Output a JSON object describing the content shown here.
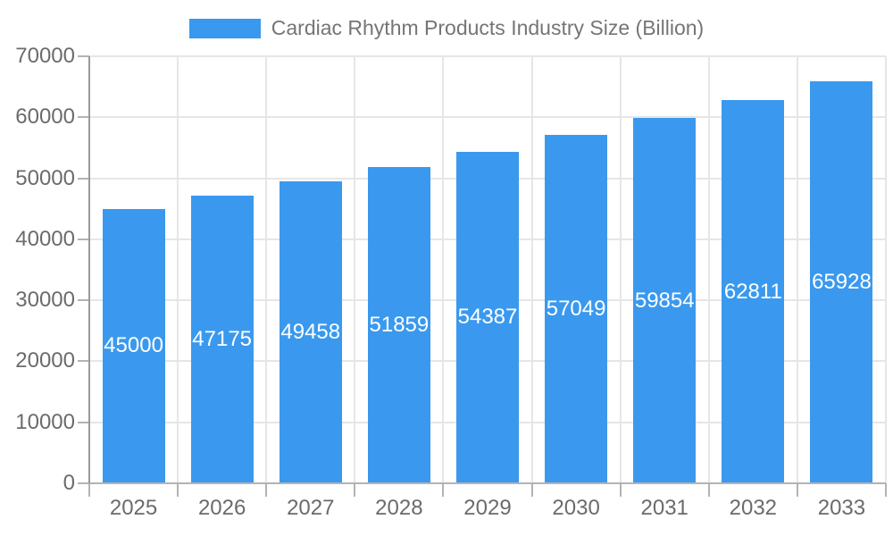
{
  "chart_data": {
    "type": "bar",
    "title": "Cardiac Rhythm Products Industry Size (Billion)",
    "legend_position": "top",
    "categories": [
      "2025",
      "2026",
      "2027",
      "2028",
      "2029",
      "2030",
      "2031",
      "2032",
      "2033"
    ],
    "series": [
      {
        "name": "Cardiac Rhythm Products Industry Size (Billion)",
        "values": [
          45000,
          47175,
          49458,
          51859,
          54387,
          57049,
          59854,
          62811,
          65928
        ]
      }
    ],
    "bar_value_labels": [
      "45000",
      "47175",
      "49458",
      "51859",
      "54387",
      "57049",
      "59854",
      "62811",
      "65928"
    ],
    "xlabel": "",
    "ylabel": "",
    "ylim": [
      0,
      70000
    ],
    "yticks": [
      0,
      10000,
      20000,
      30000,
      40000,
      50000,
      60000,
      70000
    ],
    "grid": true,
    "colors": {
      "bar": "#3A99EE",
      "bar_label_text": "#ffffff",
      "axis_text": "#6b6b6b",
      "legend_text": "#757575",
      "gridline": "#e6e6e6",
      "y_axis_line": "#9a9a9a",
      "x_axis_line": "#b3b3b3",
      "tick": "#b3b3b3",
      "background": "#ffffff"
    }
  }
}
